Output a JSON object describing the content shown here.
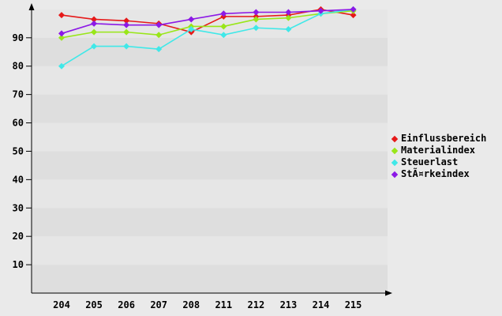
{
  "chart_data": {
    "type": "line",
    "title": "",
    "xlabel": "",
    "ylabel": "",
    "categories": [
      "204",
      "205",
      "206",
      "207",
      "208",
      "211",
      "212",
      "213",
      "214",
      "215"
    ],
    "series": [
      {
        "name": "Einflussbereich",
        "color": "#e61919",
        "values": [
          98,
          96.5,
          96,
          95,
          92,
          97.5,
          97.5,
          98,
          100,
          98
        ]
      },
      {
        "name": "Materialindex",
        "color": "#99e619",
        "values": [
          90,
          92,
          92,
          91,
          94,
          94,
          96.5,
          97,
          98.5,
          99.5
        ]
      },
      {
        "name": "Steuerlast",
        "color": "#40e8e8",
        "values": [
          80,
          87,
          87,
          86,
          93,
          91,
          93.5,
          93,
          98.5,
          100
        ]
      },
      {
        "name": "StÃ¤rkeindex",
        "color": "#8c19e6",
        "values": [
          91.5,
          95,
          94.5,
          94.5,
          96.5,
          98.5,
          99,
          99,
          99.5,
          100
        ]
      }
    ],
    "yticks": [
      10,
      20,
      30,
      40,
      50,
      60,
      70,
      80,
      90
    ],
    "ylim": [
      0,
      101
    ],
    "grid": "banded-rows",
    "band_color_dark": "#dedede",
    "band_color_light": "#e6e6e6",
    "axis_color": "#000000",
    "legend_position": "right"
  }
}
